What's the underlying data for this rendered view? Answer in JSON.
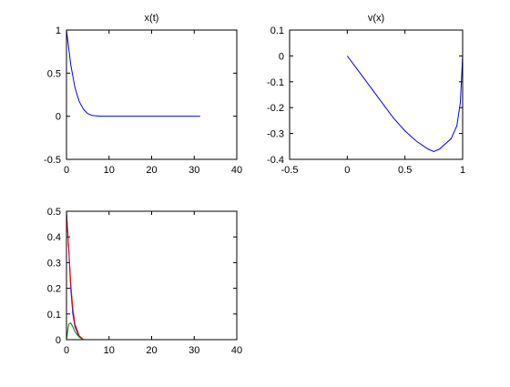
{
  "chart_data": [
    {
      "type": "line",
      "title": "x(t)",
      "x": [
        0,
        1,
        2,
        3,
        4,
        5,
        6,
        8,
        10,
        15,
        20,
        25,
        31.4
      ],
      "series": [
        {
          "color": "#0000ff",
          "values": [
            1,
            0.6,
            0.33,
            0.17,
            0.08,
            0.03,
            0.01,
            0,
            0,
            0,
            0,
            0,
            0
          ]
        }
      ],
      "xlim": [
        0,
        40
      ],
      "ylim": [
        -0.5,
        1
      ],
      "xticks": [
        0,
        10,
        20,
        30,
        40
      ],
      "yticks": [
        -0.5,
        0,
        0.5,
        1
      ]
    },
    {
      "type": "line",
      "title": "v(x)",
      "x": [
        0,
        0.1,
        0.2,
        0.3,
        0.4,
        0.5,
        0.6,
        0.7,
        0.75,
        0.8,
        0.9,
        0.95,
        0.98,
        1
      ],
      "series": [
        {
          "color": "#0000ff",
          "values": [
            0,
            -0.06,
            -0.12,
            -0.18,
            -0.24,
            -0.29,
            -0.33,
            -0.36,
            -0.37,
            -0.36,
            -0.32,
            -0.27,
            -0.18,
            0
          ]
        }
      ],
      "xlim": [
        -0.5,
        1
      ],
      "ylim": [
        -0.4,
        0.1
      ],
      "xticks": [
        -0.5,
        0,
        0.5,
        1
      ],
      "yticks": [
        -0.4,
        -0.3,
        -0.2,
        -0.1,
        0,
        0.1
      ]
    },
    {
      "type": "line",
      "x": [
        0,
        0.5,
        1,
        1.5,
        2,
        3,
        4,
        5,
        10,
        20,
        31.4
      ],
      "series": [
        {
          "color": "#0000ff",
          "values": [
            0.5,
            0.36,
            0.2,
            0.1,
            0.05,
            0.01,
            0,
            0,
            0,
            0,
            0
          ]
        },
        {
          "color": "#ff0000",
          "values": [
            0.49,
            0.37,
            0.22,
            0.12,
            0.06,
            0.015,
            0,
            0,
            0,
            0,
            0
          ]
        },
        {
          "color": "#008000",
          "values": [
            0,
            0.06,
            0.065,
            0.05,
            0.03,
            0.01,
            0,
            0,
            0,
            0,
            0
          ]
        }
      ],
      "xlim": [
        0,
        40
      ],
      "ylim": [
        0,
        0.5
      ],
      "xticks": [
        0,
        10,
        20,
        30,
        40
      ],
      "yticks": [
        0,
        0.1,
        0.2,
        0.3,
        0.4,
        0.5
      ]
    }
  ]
}
